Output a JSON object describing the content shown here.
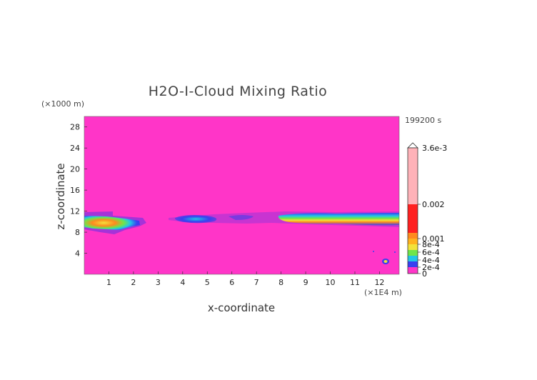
{
  "chart_data": {
    "type": "heatmap",
    "title": "H2O-I-Cloud Mixing Ratio",
    "xlabel": "x-coordinate",
    "ylabel": "z-coordinate",
    "x_unit": "(×1E4 m)",
    "y_unit": "(×1000 m)",
    "time_label": "199200 s",
    "xlim": [
      0,
      12.8
    ],
    "ylim": [
      0,
      30
    ],
    "x_ticks": [
      1,
      2,
      3,
      4,
      5,
      6,
      7,
      8,
      9,
      10,
      11,
      12
    ],
    "y_ticks": [
      4,
      8,
      12,
      16,
      20,
      24,
      28
    ],
    "colorbar": {
      "max_label": "3.6e-3",
      "labels": [
        {
          "value": 0.002,
          "text": "0.002"
        },
        {
          "value": 0.001,
          "text": "0.001"
        },
        {
          "value": 0.0008,
          "text": "8e-4"
        },
        {
          "value": 0.0006,
          "text": "6e-4"
        },
        {
          "value": 0.0004,
          "text": "4e-4"
        },
        {
          "value": 0.0002,
          "text": "2e-4"
        },
        {
          "value": 0,
          "text": "0"
        }
      ]
    },
    "cloud_features": [
      {
        "x_range": [
          0,
          2.2
        ],
        "z_range": [
          8,
          11.5
        ],
        "peak": 0.0011
      },
      {
        "x_range": [
          3.4,
          5.8
        ],
        "z_range": [
          10,
          11.5
        ],
        "peak": 0.0004
      },
      {
        "x_range": [
          7.8,
          12.8
        ],
        "z_range": [
          9.5,
          11.8
        ],
        "peak": 0.0009
      },
      {
        "x_range": [
          12.0,
          12.3
        ],
        "z_range": [
          1.5,
          3.5
        ],
        "peak": 0.0003
      }
    ]
  },
  "colors": {
    "background": "#ff35c8",
    "level_0": "#ff35c8",
    "level_2e4": "#3a3ff0",
    "level_4e4": "#22c6e6",
    "level_6e4": "#6fe54a",
    "level_8e4": "#f2e23a",
    "level_1e3": "#ff8a1e",
    "level_2e3": "#ff2020",
    "level_max": "#ffb2b8"
  }
}
